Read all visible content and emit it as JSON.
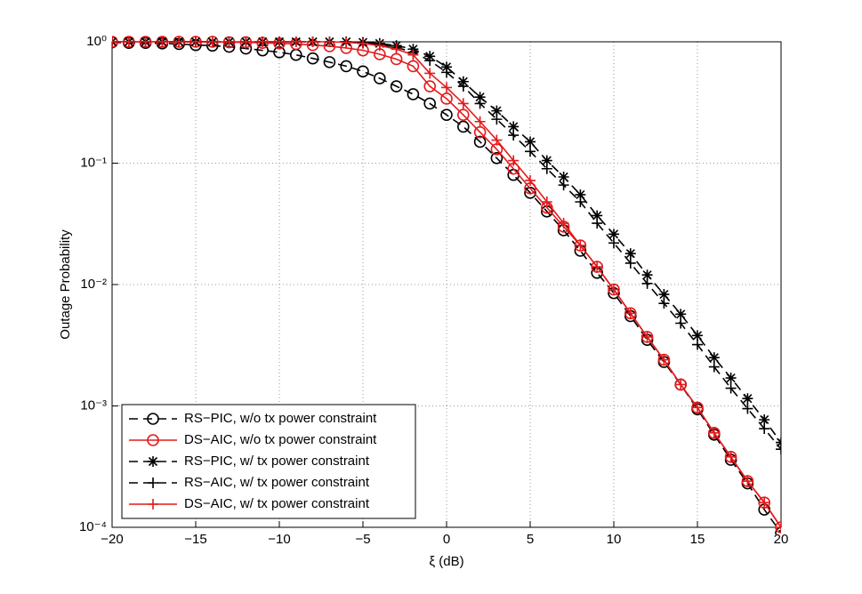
{
  "chart_data": {
    "type": "line",
    "xlabel": "ξ (dB)",
    "ylabel": "Outage Probability",
    "log_y": true,
    "grid": true,
    "legend": "lower left",
    "xlim": [
      -20,
      20
    ],
    "ylim": [
      0.0001,
      1
    ],
    "xticks": [
      {
        "value": -20,
        "label": "−20"
      },
      {
        "value": -15,
        "label": "−15"
      },
      {
        "value": -10,
        "label": "−10"
      },
      {
        "value": -5,
        "label": "−5"
      },
      0,
      5,
      10,
      15,
      20
    ],
    "yticks": [
      {
        "value": 0.0001,
        "label": "10⁻⁴"
      },
      {
        "value": 0.001,
        "label": "10⁻³"
      },
      {
        "value": 0.01,
        "label": "10⁻²"
      },
      {
        "value": 0.1,
        "label": "10⁻¹"
      },
      {
        "value": 1,
        "label": "10⁰"
      }
    ],
    "x": [
      -20,
      -19,
      -18,
      -17,
      -16,
      -15,
      -14,
      -13,
      -12,
      -11,
      -10,
      -9,
      -8,
      -7,
      -6,
      -5,
      -4,
      -3,
      -2,
      -1,
      0,
      1,
      2,
      3,
      4,
      5,
      6,
      7,
      8,
      9,
      10,
      11,
      12,
      13,
      14,
      15,
      16,
      17,
      18,
      19,
      20
    ],
    "series": [
      {
        "name": "RS−PIC, w/o tx power constraint",
        "color": "#000000",
        "dashed": true,
        "marker": "circle",
        "values": [
          0.99,
          0.98,
          0.98,
          0.97,
          0.96,
          0.94,
          0.93,
          0.91,
          0.88,
          0.85,
          0.82,
          0.78,
          0.73,
          0.68,
          0.63,
          0.57,
          0.5,
          0.43,
          0.37,
          0.31,
          0.25,
          0.2,
          0.15,
          0.11,
          0.08,
          0.057,
          0.04,
          0.028,
          0.019,
          0.0125,
          0.0085,
          0.0055,
          0.0035,
          0.0023,
          0.0015,
          0.00094,
          0.00058,
          0.00036,
          0.00023,
          0.00014,
          9e-05
        ]
      },
      {
        "name": "DS−AIC, w/o tx power constraint",
        "color": "#e31a1c",
        "dashed": false,
        "marker": "circle",
        "values": [
          1,
          1,
          1,
          1,
          1,
          1,
          1,
          0.99,
          0.99,
          0.98,
          0.97,
          0.96,
          0.94,
          0.92,
          0.89,
          0.85,
          0.79,
          0.72,
          0.63,
          0.43,
          0.34,
          0.25,
          0.18,
          0.13,
          0.09,
          0.062,
          0.043,
          0.03,
          0.021,
          0.014,
          0.0091,
          0.0058,
          0.0037,
          0.0024,
          0.0015,
          0.00097,
          0.0006,
          0.00038,
          0.00024,
          0.00016,
          0.0001
        ]
      },
      {
        "name": "RS−PIC, w/ tx power constraint",
        "color": "#000000",
        "dashed": true,
        "marker": "star",
        "values": [
          1,
          1,
          1,
          1,
          1,
          1,
          1,
          1,
          1,
          1,
          1,
          1,
          1,
          1,
          1,
          0.99,
          0.97,
          0.93,
          0.87,
          0.76,
          0.62,
          0.47,
          0.35,
          0.27,
          0.2,
          0.15,
          0.105,
          0.077,
          0.055,
          0.037,
          0.026,
          0.018,
          0.012,
          0.0083,
          0.0057,
          0.0038,
          0.0025,
          0.0017,
          0.00115,
          0.00077,
          0.0005
        ]
      },
      {
        "name": "RS−AIC, w/ tx power constraint",
        "color": "#000000",
        "dashed": true,
        "marker": "plus",
        "values": [
          1,
          1,
          1,
          1,
          1,
          1,
          1,
          1,
          1,
          1,
          1,
          1,
          1,
          1,
          1,
          0.98,
          0.95,
          0.9,
          0.82,
          0.7,
          0.56,
          0.43,
          0.31,
          0.23,
          0.17,
          0.125,
          0.09,
          0.066,
          0.048,
          0.032,
          0.022,
          0.015,
          0.0102,
          0.007,
          0.0048,
          0.0032,
          0.0021,
          0.0014,
          0.00095,
          0.00065,
          0.00044
        ]
      },
      {
        "name": "DS−AIC, w/ tx power constraint",
        "color": "#e31a1c",
        "dashed": false,
        "marker": "plus",
        "values": [
          1,
          1,
          1,
          1,
          1,
          1,
          1,
          1,
          1,
          1,
          1,
          1,
          1,
          1,
          0.99,
          0.97,
          0.93,
          0.87,
          0.78,
          0.55,
          0.42,
          0.31,
          0.22,
          0.155,
          0.105,
          0.072,
          0.048,
          0.032,
          0.021,
          0.014,
          0.0091,
          0.0058,
          0.0037,
          0.0024,
          0.0015,
          0.00097,
          0.0006,
          0.00038,
          0.00024,
          0.00016,
          0.0001
        ]
      }
    ]
  }
}
